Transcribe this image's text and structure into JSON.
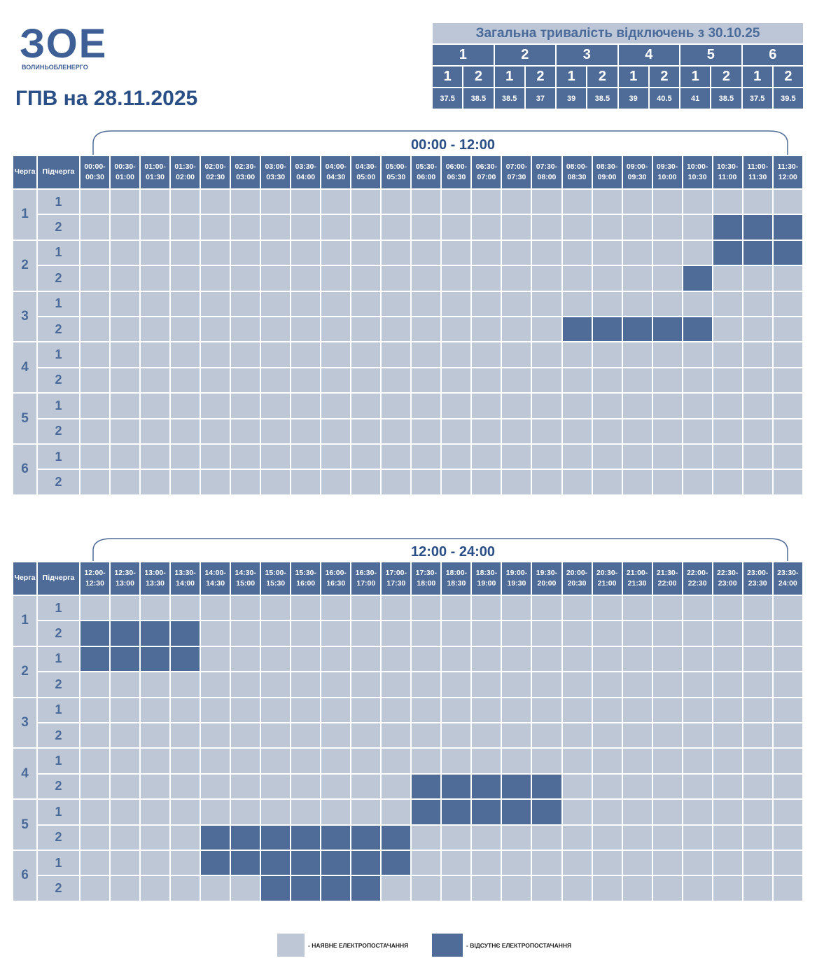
{
  "logo": {
    "mark": "ЗОЕ",
    "name": "ВОЛИНЬОБЛЕНЕРГО"
  },
  "title": "ГПВ на 28.11.2025",
  "summary": {
    "title": "Загальна тривалість відключень з 30.10.25",
    "groups": [
      {
        "label": "1",
        "subs": [
          {
            "label": "1",
            "value": "37.5"
          },
          {
            "label": "2",
            "value": "38.5"
          }
        ]
      },
      {
        "label": "2",
        "subs": [
          {
            "label": "1",
            "value": "38.5"
          },
          {
            "label": "2",
            "value": "37"
          }
        ]
      },
      {
        "label": "3",
        "subs": [
          {
            "label": "1",
            "value": "39"
          },
          {
            "label": "2",
            "value": "38.5"
          }
        ]
      },
      {
        "label": "4",
        "subs": [
          {
            "label": "1",
            "value": "39"
          },
          {
            "label": "2",
            "value": "40.5"
          }
        ]
      },
      {
        "label": "5",
        "subs": [
          {
            "label": "1",
            "value": "41"
          },
          {
            "label": "2",
            "value": "38.5"
          }
        ]
      },
      {
        "label": "6",
        "subs": [
          {
            "label": "1",
            "value": "37.5"
          },
          {
            "label": "2",
            "value": "39.5"
          }
        ]
      }
    ]
  },
  "schedules": [
    {
      "period": "00:00 - 12:00",
      "queue_header": "Черга",
      "sub_header": "Підчерга",
      "slots": [
        "00:00-00:30",
        "00:30-01:00",
        "01:00-01:30",
        "01:30-02:00",
        "02:00-02:30",
        "02:30-03:00",
        "03:00-03:30",
        "03:30-04:00",
        "04:00-04:30",
        "04:30-05:00",
        "05:00-05:30",
        "05:30-06:00",
        "06:00-06:30",
        "06:30-07:00",
        "07:00-07:30",
        "07:30-08:00",
        "08:00-08:30",
        "08:30-09:00",
        "09:00-09:30",
        "09:30-10:00",
        "10:00-10:30",
        "10:30-11:00",
        "11:00-11:30",
        "11:30-12:00"
      ],
      "rows": [
        {
          "queue": "1",
          "subs": [
            {
              "label": "1",
              "off": []
            },
            {
              "label": "2",
              "off": [
                21,
                22,
                23
              ]
            }
          ]
        },
        {
          "queue": "2",
          "subs": [
            {
              "label": "1",
              "off": [
                21,
                22,
                23
              ]
            },
            {
              "label": "2",
              "off": [
                20
              ]
            }
          ]
        },
        {
          "queue": "3",
          "subs": [
            {
              "label": "1",
              "off": []
            },
            {
              "label": "2",
              "off": [
                16,
                17,
                18,
                19,
                20
              ]
            }
          ]
        },
        {
          "queue": "4",
          "subs": [
            {
              "label": "1",
              "off": []
            },
            {
              "label": "2",
              "off": []
            }
          ]
        },
        {
          "queue": "5",
          "subs": [
            {
              "label": "1",
              "off": []
            },
            {
              "label": "2",
              "off": []
            }
          ]
        },
        {
          "queue": "6",
          "subs": [
            {
              "label": "1",
              "off": []
            },
            {
              "label": "2",
              "off": []
            }
          ]
        }
      ]
    },
    {
      "period": "12:00 - 24:00",
      "queue_header": "Черга",
      "sub_header": "Підчерга",
      "slots": [
        "12:00-12:30",
        "12:30-13:00",
        "13:00-13:30",
        "13:30-14:00",
        "14:00-14:30",
        "14:30-15:00",
        "15:00-15:30",
        "15:30-16:00",
        "16:00-16:30",
        "16:30-17:00",
        "17:00-17:30",
        "17:30-18:00",
        "18:00-18:30",
        "18:30-19:00",
        "19:00-19:30",
        "19:30-20:00",
        "20:00-20:30",
        "20:30-21:00",
        "21:00-21:30",
        "21:30-22:00",
        "22:00-22:30",
        "22:30-23:00",
        "23:00-23:30",
        "23:30-24:00"
      ],
      "rows": [
        {
          "queue": "1",
          "subs": [
            {
              "label": "1",
              "off": []
            },
            {
              "label": "2",
              "off": [
                0,
                1,
                2,
                3
              ]
            }
          ]
        },
        {
          "queue": "2",
          "subs": [
            {
              "label": "1",
              "off": [
                0,
                1,
                2,
                3
              ]
            },
            {
              "label": "2",
              "off": []
            }
          ]
        },
        {
          "queue": "3",
          "subs": [
            {
              "label": "1",
              "off": []
            },
            {
              "label": "2",
              "off": []
            }
          ]
        },
        {
          "queue": "4",
          "subs": [
            {
              "label": "1",
              "off": []
            },
            {
              "label": "2",
              "off": [
                11,
                12,
                13,
                14,
                15
              ]
            }
          ]
        },
        {
          "queue": "5",
          "subs": [
            {
              "label": "1",
              "off": [
                11,
                12,
                13,
                14,
                15
              ]
            },
            {
              "label": "2",
              "off": [
                4,
                5,
                6,
                7,
                8,
                9,
                10
              ]
            }
          ]
        },
        {
          "queue": "6",
          "subs": [
            {
              "label": "1",
              "off": [
                4,
                5,
                6,
                7,
                8,
                9,
                10
              ]
            },
            {
              "label": "2",
              "off": [
                6,
                7,
                8,
                9
              ]
            }
          ]
        }
      ]
    }
  ],
  "legend": {
    "on": "- НАЯВНЕ ЕЛЕКТРОПОСТАЧАННЯ",
    "off": "- ВІДСУТНЄ ЕЛЕКТРОПОСТАЧАННЯ"
  }
}
